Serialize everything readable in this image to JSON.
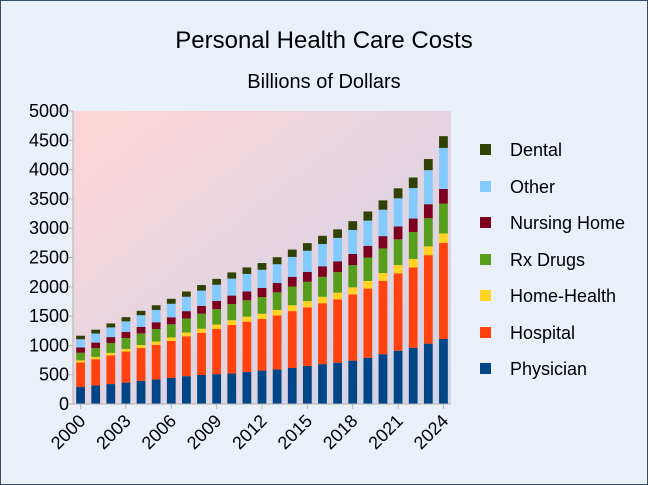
{
  "chart_data": {
    "type": "bar",
    "stacked": true,
    "title": "Personal Health Care Costs",
    "subtitle": "Billions of Dollars",
    "xlabel": "",
    "ylabel": "",
    "ylim": [
      0,
      5000
    ],
    "yticks": [
      0,
      500,
      1000,
      1500,
      2000,
      2500,
      3000,
      3500,
      4000,
      4500,
      5000
    ],
    "x_tick_labels": [
      "2000",
      "2003",
      "2006",
      "2009",
      "2012",
      "2015",
      "2018",
      "2021",
      "2024"
    ],
    "grid": false,
    "legend_position": "right",
    "categories": [
      "2000",
      "2001",
      "2002",
      "2003",
      "2004",
      "2005",
      "2006",
      "2007",
      "2008",
      "2009",
      "2010",
      "2011",
      "2012",
      "2013",
      "2014",
      "2015",
      "2016",
      "2017",
      "2018",
      "2019",
      "2020",
      "2021",
      "2022",
      "2023",
      "2024"
    ],
    "series": [
      {
        "name": "Physician",
        "color": "#004586",
        "values": [
          290,
          315,
          340,
          365,
          395,
          420,
          445,
          475,
          495,
          510,
          520,
          545,
          570,
          590,
          615,
          650,
          680,
          705,
          740,
          790,
          850,
          910,
          960,
          1030,
          1110
        ]
      },
      {
        "name": "Hospital",
        "color": "#ff420e",
        "values": [
          420,
          450,
          490,
          530,
          560,
          590,
          630,
          680,
          720,
          770,
          830,
          860,
          880,
          920,
          970,
          1000,
          1040,
          1080,
          1130,
          1180,
          1250,
          1320,
          1370,
          1510,
          1640
        ]
      },
      {
        "name": "Home-Health",
        "color": "#ffd320",
        "values": [
          35,
          38,
          42,
          45,
          50,
          55,
          60,
          65,
          70,
          75,
          80,
          85,
          90,
          95,
          100,
          105,
          110,
          115,
          120,
          130,
          135,
          140,
          145,
          150,
          160
        ]
      },
      {
        "name": "Rx Drugs",
        "color": "#579d1c",
        "values": [
          130,
          150,
          170,
          185,
          200,
          215,
          225,
          240,
          255,
          265,
          275,
          280,
          285,
          300,
          320,
          330,
          340,
          350,
          380,
          400,
          420,
          440,
          460,
          480,
          510
        ]
      },
      {
        "name": "Nursing Home",
        "color": "#7e0021",
        "values": [
          90,
          95,
          100,
          105,
          110,
          115,
          120,
          125,
          135,
          140,
          145,
          150,
          155,
          160,
          165,
          170,
          180,
          185,
          190,
          200,
          210,
          220,
          230,
          240,
          250
        ]
      },
      {
        "name": "Other",
        "color": "#83caff",
        "values": [
          140,
          155,
          165,
          180,
          200,
          210,
          230,
          245,
          260,
          275,
          290,
          300,
          310,
          320,
          340,
          360,
          380,
          400,
          410,
          430,
          450,
          480,
          520,
          580,
          700
        ]
      },
      {
        "name": "Dental",
        "color": "#314004",
        "values": [
          60,
          65,
          68,
          72,
          75,
          80,
          85,
          90,
          95,
          100,
          105,
          110,
          115,
          120,
          125,
          130,
          140,
          145,
          150,
          155,
          160,
          170,
          180,
          190,
          200
        ]
      }
    ]
  }
}
